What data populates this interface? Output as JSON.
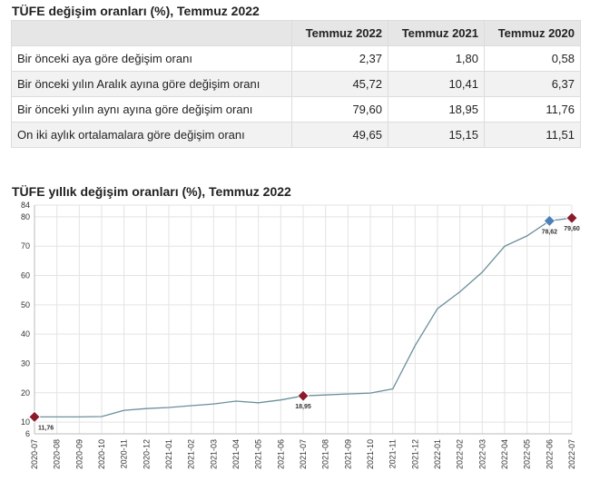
{
  "table": {
    "title": "TÜFE değişim oranları (%), Temmuz 2022",
    "headers": [
      "",
      "Temmuz 2022",
      "Temmuz 2021",
      "Temmuz 2020"
    ],
    "rows": [
      {
        "label": "Bir önceki aya göre değişim oranı",
        "values": [
          "2,37",
          "1,80",
          "0,58"
        ]
      },
      {
        "label": "Bir önceki yılın Aralık ayına göre değişim oranı",
        "values": [
          "45,72",
          "10,41",
          "6,37"
        ]
      },
      {
        "label": "Bir önceki yılın aynı ayına göre değişim oranı",
        "values": [
          "79,60",
          "18,95",
          "11,76"
        ]
      },
      {
        "label": "On iki aylık ortalamalara göre değişim oranı",
        "values": [
          "49,65",
          "15,15",
          "11,51"
        ]
      }
    ]
  },
  "chart_data": {
    "type": "line",
    "title": "TÜFE yıllık değişim oranları (%), Temmuz 2022",
    "xlabel": "",
    "ylabel": "",
    "ylim": [
      6,
      84
    ],
    "yticks": [
      6,
      10,
      20,
      30,
      40,
      50,
      60,
      70,
      80,
      84
    ],
    "grid": true,
    "line_color": "#6b8f9c",
    "x": [
      "2020-07",
      "2020-08",
      "2020-09",
      "2020-10",
      "2020-11",
      "2020-12",
      "2021-01",
      "2021-02",
      "2021-03",
      "2021-04",
      "2021-05",
      "2021-06",
      "2021-07",
      "2021-08",
      "2021-09",
      "2021-10",
      "2021-11",
      "2021-12",
      "2022-01",
      "2022-02",
      "2022-03",
      "2022-04",
      "2022-05",
      "2022-06",
      "2022-07"
    ],
    "values": [
      11.76,
      11.77,
      11.75,
      11.89,
      14.03,
      14.6,
      14.97,
      15.61,
      16.19,
      17.14,
      16.59,
      17.53,
      18.95,
      19.25,
      19.58,
      19.89,
      21.31,
      36.08,
      48.69,
      54.44,
      61.14,
      69.97,
      73.5,
      78.62,
      79.6
    ],
    "markers": [
      {
        "x": "2020-07",
        "value": 11.76,
        "label": "11,76",
        "color": "#8b1a2b"
      },
      {
        "x": "2021-07",
        "value": 18.95,
        "label": "18,95",
        "color": "#8b1a2b"
      },
      {
        "x": "2022-06",
        "value": 78.62,
        "label": "78,62",
        "color": "#4a80b8"
      },
      {
        "x": "2022-07",
        "value": 79.6,
        "label": "79,60",
        "color": "#8b1a2b"
      }
    ]
  }
}
